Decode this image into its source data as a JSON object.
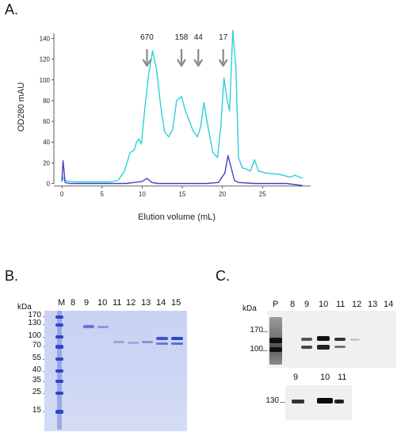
{
  "panels": {
    "a": "A.",
    "b": "B.",
    "c": "C."
  },
  "chart_data": {
    "type": "line",
    "xlabel": "Elution volume (mL)",
    "ylabel": "OD280 mAU",
    "xlim": [
      -1,
      31
    ],
    "ylim": [
      -5,
      145
    ],
    "x_ticks": [
      0,
      5,
      10,
      15,
      20,
      25
    ],
    "y_ticks": [
      0,
      20,
      40,
      60,
      80,
      100,
      120,
      140
    ],
    "markers": [
      {
        "label": "670",
        "x": 10.6
      },
      {
        "label": "158",
        "x": 14.9
      },
      {
        "label": "44",
        "x": 17.0
      },
      {
        "label": "17",
        "x": 20.1
      }
    ],
    "series": [
      {
        "color": "#2ecfd8",
        "x": [
          0,
          0.3,
          1,
          2,
          3,
          4,
          5,
          6,
          7,
          7.8,
          8.5,
          9.0,
          9.3,
          9.6,
          9.9,
          10.3,
          10.8,
          11.3,
          11.8,
          12.3,
          12.8,
          13.3,
          13.8,
          14.3,
          14.9,
          15.4,
          15.9,
          16.4,
          16.9,
          17.3,
          17.7,
          18.2,
          18.8,
          19.4,
          19.8,
          20.2,
          20.6,
          20.9,
          21.3,
          21.7,
          22.0,
          22.5,
          23.0,
          23.5,
          24.0,
          24.5,
          25.5,
          27,
          28.5,
          29,
          30
        ],
        "y": [
          8,
          3,
          2,
          1.5,
          1.5,
          1.5,
          1.5,
          1.5,
          3,
          12,
          30,
          32,
          40,
          43,
          38,
          70,
          105,
          128,
          110,
          75,
          50,
          45,
          52,
          80,
          84,
          70,
          60,
          50,
          45,
          55,
          78,
          55,
          30,
          25,
          55,
          102,
          80,
          70,
          148,
          110,
          25,
          15,
          14,
          12,
          23,
          12,
          10,
          9,
          6,
          8,
          5
        ]
      },
      {
        "color": "#4a3fc0",
        "x": [
          0,
          0.15,
          0.4,
          1,
          3,
          5,
          7,
          8,
          9,
          10,
          10.6,
          11.2,
          12,
          14,
          16,
          18,
          19.5,
          20.3,
          20.7,
          21.1,
          21.5,
          22,
          24,
          26,
          28,
          30
        ],
        "y": [
          2,
          22,
          1,
          0,
          0,
          0,
          0,
          0,
          1,
          2,
          5,
          1,
          0,
          0,
          0,
          0,
          1,
          10,
          27,
          15,
          3,
          1,
          0,
          0,
          0,
          -2
        ]
      }
    ]
  },
  "gel_b": {
    "kda_title": "kDa",
    "markers_kda": [
      "170",
      "130",
      "100",
      "70",
      "55",
      "40",
      "35",
      "25",
      "15"
    ],
    "lanes": [
      "M",
      "8",
      "9",
      "10",
      "11",
      "12",
      "13",
      "14",
      "15"
    ]
  },
  "blot_c": {
    "kda_title": "kDa",
    "lanes_top": [
      "P",
      "8",
      "9",
      "10",
      "11",
      "12",
      "13",
      "14"
    ],
    "markers_top": [
      "170",
      "100"
    ],
    "lanes_bottom": [
      "9",
      "10",
      "11"
    ],
    "marker_bottom": "130"
  }
}
